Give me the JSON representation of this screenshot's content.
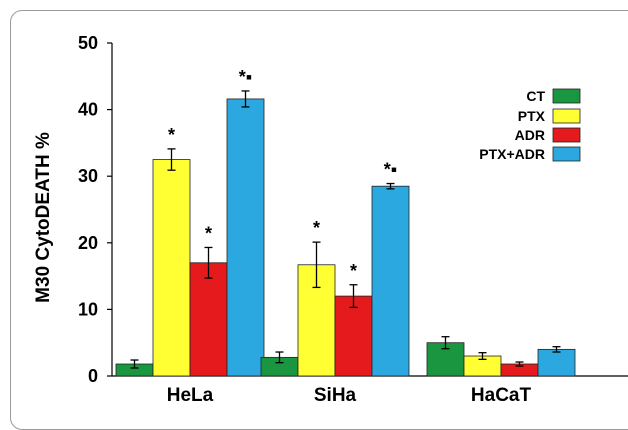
{
  "chart_data": {
    "type": "bar",
    "title": "",
    "xlabel": "",
    "ylabel": "M30  CytoDEATH %",
    "ylim": [
      0,
      50
    ],
    "yticks": [
      "0",
      "10",
      "20",
      "30",
      "40",
      "50"
    ],
    "grid": false,
    "legend_position": "top-right",
    "categories": [
      "HeLa",
      "SiHa",
      "HaCaT"
    ],
    "series": [
      {
        "name": "CT",
        "color": "#1a9641",
        "values": [
          1.8,
          2.8,
          5.0
        ],
        "errors": [
          0.6,
          0.8,
          0.9
        ],
        "marks": [
          "",
          "",
          ""
        ]
      },
      {
        "name": "PTX",
        "color": "#ffff33",
        "values": [
          32.5,
          16.7,
          3.0
        ],
        "errors": [
          1.6,
          3.4,
          0.5
        ],
        "marks": [
          "*",
          "*",
          ""
        ]
      },
      {
        "name": "ADR",
        "color": "#e41a1c",
        "values": [
          17.0,
          12.0,
          1.8
        ],
        "errors": [
          2.3,
          1.7,
          0.3
        ],
        "marks": [
          "*",
          "*",
          ""
        ]
      },
      {
        "name": "PTX+ADR",
        "color": "#2ca8e0",
        "values": [
          41.6,
          28.5,
          4.0
        ],
        "errors": [
          1.2,
          0.4,
          0.4
        ],
        "marks": [
          "*▪",
          "*▪",
          ""
        ]
      }
    ]
  }
}
